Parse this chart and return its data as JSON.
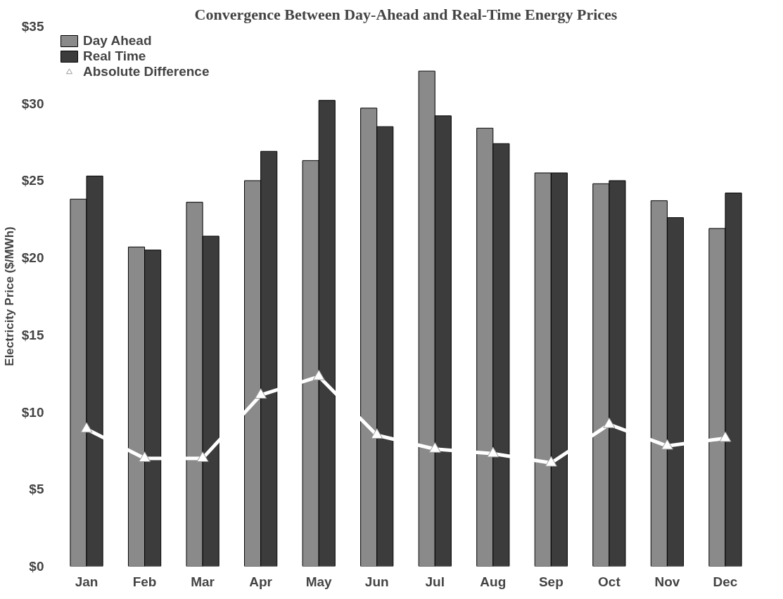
{
  "chart_data": {
    "type": "bar",
    "title": "Convergence Between Day-Ahead and Real-Time Energy Prices",
    "ylabel": "Electricity Price ($/MWh)",
    "categories": [
      "Jan",
      "Feb",
      "Mar",
      "Apr",
      "May",
      "Jun",
      "Jul",
      "Aug",
      "Sep",
      "Oct",
      "Nov",
      "Dec"
    ],
    "series": [
      {
        "name": "Day Ahead",
        "color": "#8a8a8a",
        "values": [
          23.8,
          20.7,
          23.6,
          25.0,
          26.3,
          29.7,
          32.1,
          28.4,
          25.5,
          24.8,
          23.7,
          21.9
        ]
      },
      {
        "name": "Real Time",
        "color": "#3c3c3c",
        "values": [
          25.3,
          20.5,
          21.4,
          26.9,
          30.2,
          28.5,
          29.2,
          27.4,
          25.5,
          25.0,
          22.6,
          24.2
        ]
      },
      {
        "name": "Absolute Difference",
        "type": "line",
        "color": "#ffffff",
        "marker": "triangle",
        "values": [
          8.9,
          7.0,
          7.0,
          11.1,
          12.3,
          8.5,
          7.6,
          7.3,
          6.7,
          9.2,
          7.8,
          8.3
        ]
      }
    ],
    "ylim": [
      0,
      35
    ],
    "yticks": [
      {
        "value": 0,
        "label": "$0"
      },
      {
        "value": 5,
        "label": "$5"
      },
      {
        "value": 10,
        "label": "$10"
      },
      {
        "value": 15,
        "label": "$15"
      },
      {
        "value": 20,
        "label": "$20"
      },
      {
        "value": 25,
        "label": "$25"
      },
      {
        "value": 30,
        "label": "$30"
      },
      {
        "value": 35,
        "label": "$35"
      }
    ],
    "legend": "top left",
    "grid": false
  }
}
